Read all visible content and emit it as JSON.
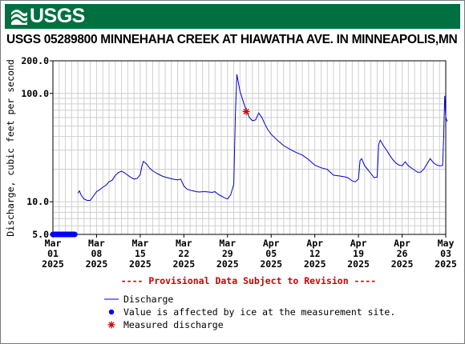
{
  "header": {
    "logo_text": "USGS"
  },
  "chart_data": {
    "type": "line",
    "title": "USGS 05289800 MINNEHAHA CREEK AT HIAWATHA AVE. IN MINNEAPOLIS,MN",
    "ylabel": "Discharge, cubic feet per second",
    "y_scale": "log",
    "ylim": [
      5,
      200
    ],
    "y_ticks": [
      {
        "value": 5,
        "label": "5.0"
      },
      {
        "value": 10,
        "label": "10.0"
      },
      {
        "value": 100,
        "label": "100.0"
      },
      {
        "value": 200,
        "label": "200.0"
      }
    ],
    "xlim": [
      "2025-03-01",
      "2025-05-03"
    ],
    "x_ticks": [
      {
        "date": "2025-03-01",
        "lines": [
          "Mar",
          "01",
          "2025"
        ]
      },
      {
        "date": "2025-03-08",
        "lines": [
          "Mar",
          "08",
          "2025"
        ]
      },
      {
        "date": "2025-03-15",
        "lines": [
          "Mar",
          "15",
          "2025"
        ]
      },
      {
        "date": "2025-03-22",
        "lines": [
          "Mar",
          "22",
          "2025"
        ]
      },
      {
        "date": "2025-03-29",
        "lines": [
          "Mar",
          "29",
          "2025"
        ]
      },
      {
        "date": "2025-04-05",
        "lines": [
          "Apr",
          "05",
          "2025"
        ]
      },
      {
        "date": "2025-04-12",
        "lines": [
          "Apr",
          "12",
          "2025"
        ]
      },
      {
        "date": "2025-04-19",
        "lines": [
          "Apr",
          "19",
          "2025"
        ]
      },
      {
        "date": "2025-04-26",
        "lines": [
          "Apr",
          "26",
          "2025"
        ]
      },
      {
        "date": "2025-05-03",
        "lines": [
          "May",
          "03",
          "2025"
        ]
      }
    ],
    "grid": true,
    "series": [
      {
        "name": "Discharge",
        "color": "#0000cc",
        "points": [
          [
            "2025-03-05",
            12.0
          ],
          [
            "2025-03-05 06:00",
            12.6
          ],
          [
            "2025-03-05 12:00",
            11.6
          ],
          [
            "2025-03-06",
            10.6
          ],
          [
            "2025-03-06 12:00",
            10.3
          ],
          [
            "2025-03-07",
            10.3
          ],
          [
            "2025-03-07 12:00",
            11.3
          ],
          [
            "2025-03-08",
            12.4
          ],
          [
            "2025-03-08 12:00",
            12.9
          ],
          [
            "2025-03-09",
            13.6
          ],
          [
            "2025-03-09 12:00",
            14.2
          ],
          [
            "2025-03-10",
            15.3
          ],
          [
            "2025-03-10 12:00",
            15.8
          ],
          [
            "2025-03-11",
            17.5
          ],
          [
            "2025-03-11 12:00",
            18.6
          ],
          [
            "2025-03-12",
            19.2
          ],
          [
            "2025-03-12 12:00",
            18.5
          ],
          [
            "2025-03-13",
            17.6
          ],
          [
            "2025-03-13 12:00",
            16.8
          ],
          [
            "2025-03-14",
            16.2
          ],
          [
            "2025-03-14 12:00",
            16.4
          ],
          [
            "2025-03-15",
            17.8
          ],
          [
            "2025-03-15 06:00",
            21.0
          ],
          [
            "2025-03-15 12:00",
            23.6
          ],
          [
            "2025-03-16",
            22.4
          ],
          [
            "2025-03-16 12:00",
            20.5
          ],
          [
            "2025-03-17",
            19.3
          ],
          [
            "2025-03-17 12:00",
            18.5
          ],
          [
            "2025-03-18",
            17.9
          ],
          [
            "2025-03-18 12:00",
            17.3
          ],
          [
            "2025-03-19",
            16.9
          ],
          [
            "2025-03-19 12:00",
            16.6
          ],
          [
            "2025-03-20",
            16.3
          ],
          [
            "2025-03-20 12:00",
            16.1
          ],
          [
            "2025-03-21",
            15.9
          ],
          [
            "2025-03-21 12:00",
            16.2
          ],
          [
            "2025-03-22",
            14.0
          ],
          [
            "2025-03-22 12:00",
            13.1
          ],
          [
            "2025-03-23",
            12.8
          ],
          [
            "2025-03-23 12:00",
            12.6
          ],
          [
            "2025-03-24",
            12.4
          ],
          [
            "2025-03-24 12:00",
            12.3
          ],
          [
            "2025-03-25",
            12.4
          ],
          [
            "2025-03-25 12:00",
            12.4
          ],
          [
            "2025-03-26",
            12.3
          ],
          [
            "2025-03-26 12:00",
            12.2
          ],
          [
            "2025-03-27",
            12.4
          ],
          [
            "2025-03-27 12:00",
            11.7
          ],
          [
            "2025-03-28",
            11.3
          ],
          [
            "2025-03-28 12:00",
            10.9
          ],
          [
            "2025-03-29",
            10.6
          ],
          [
            "2025-03-29 12:00",
            11.6
          ],
          [
            "2025-03-30",
            14.5
          ],
          [
            "2025-03-30 06:00",
            60.0
          ],
          [
            "2025-03-30 12:00",
            150.0
          ],
          [
            "2025-03-31",
            105.0
          ],
          [
            "2025-03-31 12:00",
            85.0
          ],
          [
            "2025-04-01",
            70.0
          ],
          [
            "2025-04-01 12:00",
            60.0
          ],
          [
            "2025-04-02",
            56.0
          ],
          [
            "2025-04-02 12:00",
            57.0
          ],
          [
            "2025-04-03",
            66.0
          ],
          [
            "2025-04-03 12:00",
            60.0
          ],
          [
            "2025-04-04",
            52.0
          ],
          [
            "2025-04-04 12:00",
            46.0
          ],
          [
            "2025-04-05",
            42.0
          ],
          [
            "2025-04-06",
            37.0
          ],
          [
            "2025-04-07",
            33.0
          ],
          [
            "2025-04-08",
            30.5
          ],
          [
            "2025-04-09",
            28.5
          ],
          [
            "2025-04-10",
            27.0
          ],
          [
            "2025-04-11",
            24.5
          ],
          [
            "2025-04-12",
            21.8
          ],
          [
            "2025-04-13",
            20.6
          ],
          [
            "2025-04-14",
            19.9
          ],
          [
            "2025-04-15",
            17.6
          ],
          [
            "2025-04-16",
            17.3
          ],
          [
            "2025-04-17",
            16.9
          ],
          [
            "2025-04-17 12:00",
            16.4
          ],
          [
            "2025-04-18",
            15.6
          ],
          [
            "2025-04-18 12:00",
            15.3
          ],
          [
            "2025-04-19",
            16.2
          ],
          [
            "2025-04-19 06:00",
            24.0
          ],
          [
            "2025-04-19 12:00",
            25.0
          ],
          [
            "2025-04-20",
            21.5
          ],
          [
            "2025-04-20 12:00",
            19.8
          ],
          [
            "2025-04-21",
            18.2
          ],
          [
            "2025-04-21 12:00",
            16.7
          ],
          [
            "2025-04-22",
            16.9
          ],
          [
            "2025-04-22 06:00",
            34.0
          ],
          [
            "2025-04-22 12:00",
            37.0
          ],
          [
            "2025-04-23",
            33.0
          ],
          [
            "2025-04-23 12:00",
            30.0
          ],
          [
            "2025-04-24",
            27.0
          ],
          [
            "2025-04-24 12:00",
            24.5
          ],
          [
            "2025-04-25",
            22.8
          ],
          [
            "2025-04-25 12:00",
            21.8
          ],
          [
            "2025-04-26",
            21.5
          ],
          [
            "2025-04-26 12:00",
            23.4
          ],
          [
            "2025-04-27",
            21.5
          ],
          [
            "2025-04-27 12:00",
            20.5
          ],
          [
            "2025-04-28",
            19.6
          ],
          [
            "2025-04-28 12:00",
            18.7
          ],
          [
            "2025-04-29",
            18.8
          ],
          [
            "2025-04-29 12:00",
            20.1
          ],
          [
            "2025-04-30",
            22.4
          ],
          [
            "2025-04-30 12:00",
            25.0
          ],
          [
            "2025-05-01",
            23.0
          ],
          [
            "2025-05-01 12:00",
            21.9
          ],
          [
            "2025-05-02",
            21.5
          ],
          [
            "2025-05-02 12:00",
            21.6
          ],
          [
            "2025-05-02 16:00",
            40.0
          ],
          [
            "2025-05-02 20:00",
            95.0
          ],
          [
            "2025-05-03",
            60.0
          ],
          [
            "2025-05-03 06:00",
            55.0
          ]
        ]
      },
      {
        "name": "Value is affected by ice at the measurement site.",
        "color": "#0000ff",
        "type": "marker-band",
        "x_range": [
          "2025-03-01",
          "2025-03-04 12:00"
        ],
        "y": 5
      },
      {
        "name": "Measured discharge",
        "color": "#cc0000",
        "type": "scatter",
        "points": [
          [
            "2025-04-01",
            68.0
          ]
        ]
      }
    ],
    "annotation": "---- Provisional Data Subject to Revision ----",
    "legend": {
      "placement": "bottom-left",
      "entries": [
        {
          "symbol": "line",
          "label": "Discharge",
          "color": "#0000cc"
        },
        {
          "symbol": "dot",
          "label": "Value is affected by ice at the measurement site.",
          "color": "#0000ff"
        },
        {
          "symbol": "star",
          "label": "Measured discharge",
          "color": "#cc0000"
        }
      ]
    }
  }
}
